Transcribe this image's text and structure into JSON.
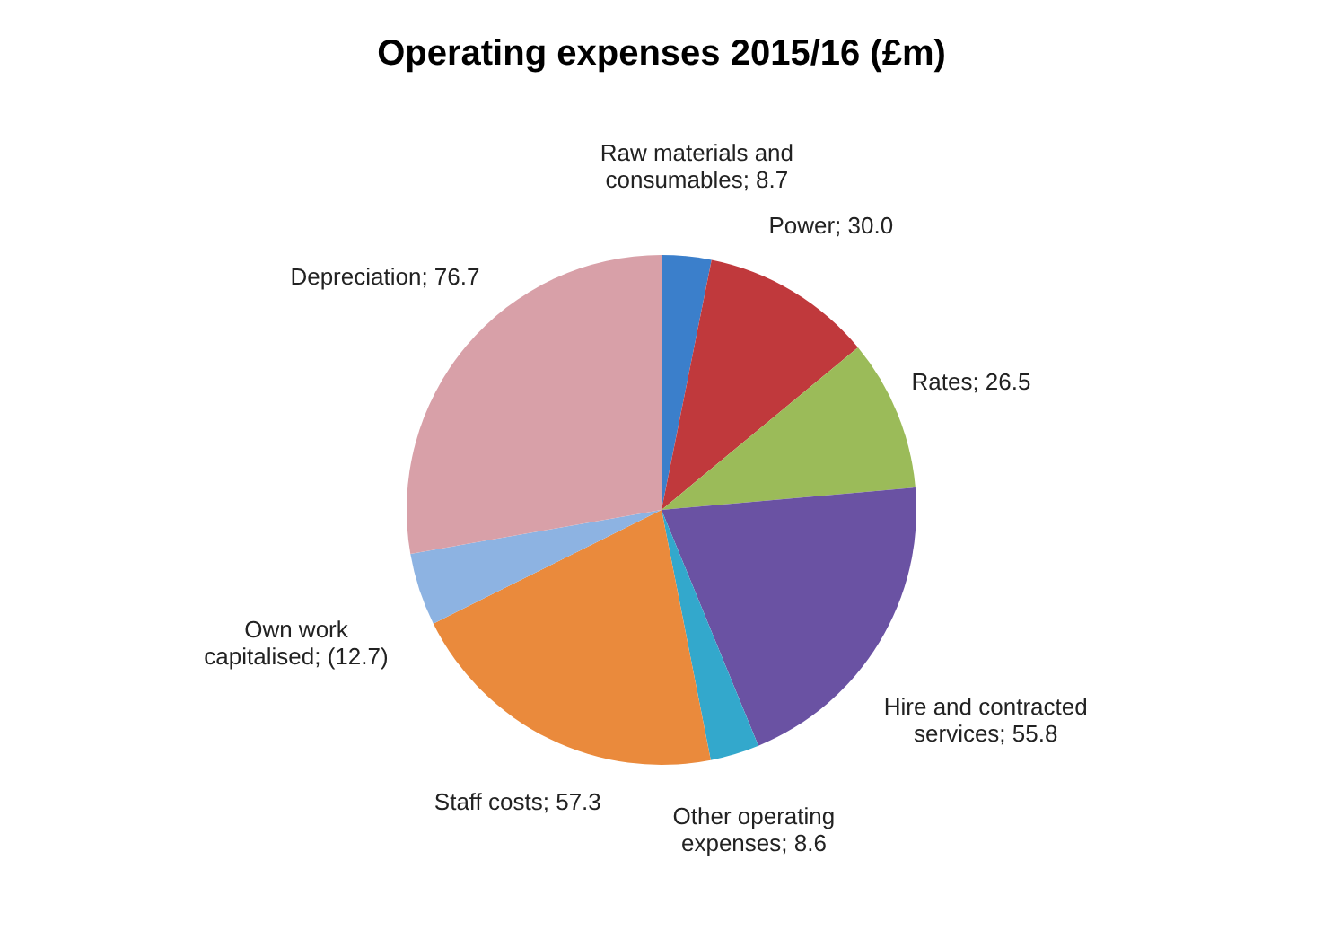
{
  "chart_data": {
    "type": "pie",
    "title": "Operating  expenses 2015/16 (£m)",
    "categories": [
      "Raw materials and consumables",
      "Power",
      "Rates",
      "Hire and contracted services",
      "Other operating expenses",
      "Staff costs",
      "Own work capitalised",
      "Depreciation"
    ],
    "values": [
      8.7,
      30.0,
      26.5,
      55.8,
      8.6,
      57.3,
      12.7,
      76.7
    ],
    "value_labels": [
      "8.7",
      "30.0",
      "26.5",
      "55.8",
      "8.6",
      "57.3",
      "(12.7)",
      "76.7"
    ],
    "colors": [
      "#3b7fcb",
      "#c0393c",
      "#9bbb59",
      "#6a52a3",
      "#33a8cc",
      "#ea8a3c",
      "#8db3e2",
      "#d8a0a8"
    ]
  }
}
